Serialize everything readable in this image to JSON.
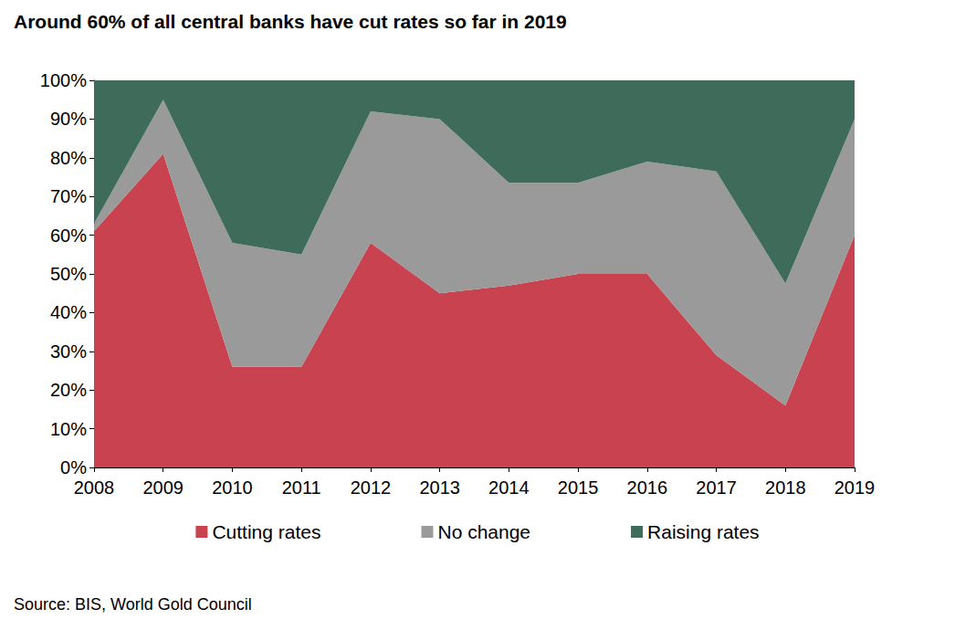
{
  "chart_data": {
    "type": "area",
    "title": "Around 60% of all central banks have cut rates so far in 2019",
    "source": "Source: BIS, World Gold Council",
    "categories": [
      "2008",
      "2009",
      "2010",
      "2011",
      "2012",
      "2013",
      "2014",
      "2015",
      "2016",
      "2017",
      "2018",
      "2019"
    ],
    "series": [
      {
        "name": "Cutting rates",
        "color": "#c8434f",
        "values": [
          61,
          81,
          26,
          26,
          58,
          45,
          47,
          50,
          50,
          29,
          16,
          60
        ]
      },
      {
        "name": "No change",
        "color": "#9a9a9a",
        "values": [
          2,
          14,
          32,
          29,
          34,
          45,
          26.5,
          23.5,
          29,
          47.5,
          31.5,
          30
        ]
      },
      {
        "name": "Raising rates",
        "color": "#3f6b5a",
        "values": [
          37,
          5,
          42,
          45,
          8,
          10,
          26.5,
          26.5,
          21,
          23.5,
          52.5,
          10
        ]
      }
    ],
    "stacked": true,
    "grid": false,
    "legend": "bottom",
    "ylim": [
      0,
      100
    ],
    "yticks": [
      {
        "value": 0,
        "label": "0%"
      },
      {
        "value": 10,
        "label": "10%"
      },
      {
        "value": 20,
        "label": "20%"
      },
      {
        "value": 30,
        "label": "30%"
      },
      {
        "value": 40,
        "label": "40%"
      },
      {
        "value": 50,
        "label": "50%"
      },
      {
        "value": 60,
        "label": "60%"
      },
      {
        "value": 70,
        "label": "70%"
      },
      {
        "value": 80,
        "label": "80%"
      },
      {
        "value": 90,
        "label": "90%"
      },
      {
        "value": 100,
        "label": "100%"
      }
    ]
  }
}
